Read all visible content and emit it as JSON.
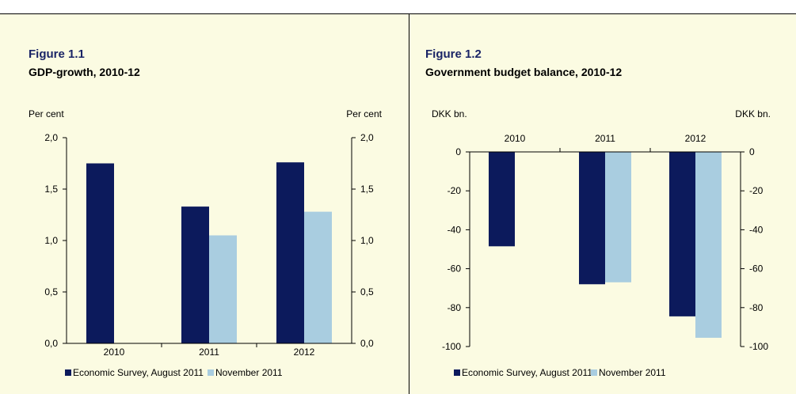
{
  "colors": {
    "panel_background": "#fbfbe2",
    "series_august": "#0c1a5c",
    "series_november": "#a9cde0",
    "title_color": "#1a2466"
  },
  "chart_data": [
    {
      "id": "figure_1_1",
      "type": "bar",
      "figure_label": "Figure 1.1",
      "title": "GDP-growth, 2010-12",
      "ylabel_left": "Per cent",
      "ylabel_right": "Per cent",
      "categories": [
        "2010",
        "2011",
        "2012"
      ],
      "category_axis": "bottom",
      "ylim": [
        0,
        2.0
      ],
      "yticks": [
        0.0,
        0.5,
        1.0,
        1.5,
        2.0
      ],
      "ytick_labels": [
        "0,0",
        "0,5",
        "1,0",
        "1,5",
        "2,0"
      ],
      "grid": false,
      "legend_position": "bottom",
      "series": [
        {
          "name": "Economic Survey, August 2011",
          "values": [
            1.75,
            1.33,
            1.76
          ]
        },
        {
          "name": "November 2011",
          "values": [
            null,
            1.05,
            1.28
          ]
        }
      ]
    },
    {
      "id": "figure_1_2",
      "type": "bar",
      "figure_label": "Figure 1.2",
      "title": "Government budget balance, 2010-12",
      "ylabel_left": "DKK bn.",
      "ylabel_right": "DKK bn.",
      "categories": [
        "2010",
        "2011",
        "2012"
      ],
      "category_axis": "top",
      "ylim": [
        -100,
        0
      ],
      "yticks": [
        0,
        -20,
        -40,
        -60,
        -80,
        -100
      ],
      "ytick_labels": [
        "0",
        "-20",
        "-40",
        "-60",
        "-80",
        "-100"
      ],
      "grid": false,
      "legend_position": "bottom",
      "series": [
        {
          "name": "Economic Survey, August 2011",
          "values": [
            -48.5,
            -68,
            -84.5
          ]
        },
        {
          "name": "November 2011",
          "values": [
            null,
            -67,
            -95.5
          ]
        }
      ]
    }
  ]
}
